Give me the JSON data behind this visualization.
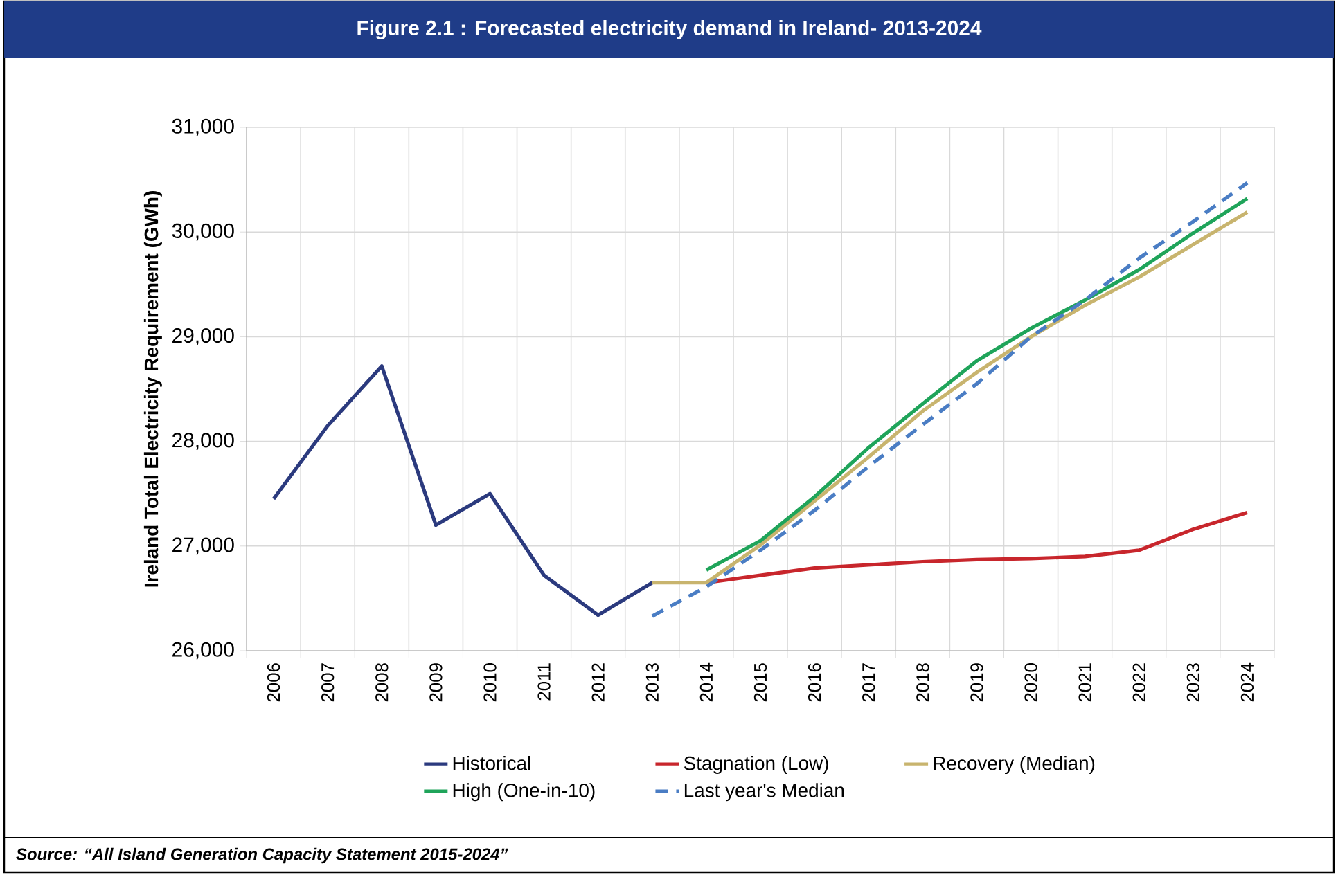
{
  "chart_data": {
    "type": "line",
    "title": "Figure 2.1 : Forecasted electricity demand in Ireland- 2013-2024",
    "ylabel": "Ireland Total Electricity Requirement (GWh)",
    "categories": [
      "2006",
      "2007",
      "2008",
      "2009",
      "2010",
      "2011",
      "2012",
      "2013",
      "2014",
      "2015",
      "2016",
      "2017",
      "2018",
      "2019",
      "2020",
      "2021",
      "2022",
      "2023",
      "2024"
    ],
    "series": [
      {
        "name": "Historical",
        "color": "#2b3a7e",
        "line_style": "solid",
        "values": [
          27450,
          28150,
          28720,
          27200,
          27500,
          26720,
          26340,
          26650,
          null,
          null,
          null,
          null,
          null,
          null,
          null,
          null,
          null,
          null,
          null
        ]
      },
      {
        "name": "Stagnation (Low)",
        "color": "#c8262c",
        "line_style": "solid",
        "values": [
          null,
          null,
          null,
          null,
          null,
          null,
          null,
          null,
          26650,
          26720,
          26790,
          26820,
          26850,
          26870,
          26880,
          26900,
          26960,
          27160,
          27320
        ]
      },
      {
        "name": "Recovery (Median)",
        "color": "#c8b46e",
        "line_style": "solid",
        "values": [
          null,
          null,
          null,
          null,
          null,
          null,
          null,
          26650,
          26650,
          27010,
          27430,
          27850,
          28290,
          28660,
          29000,
          29300,
          29570,
          29880,
          30190
        ]
      },
      {
        "name": "High (One-in-10)",
        "color": "#1fa45a",
        "line_style": "solid",
        "values": [
          null,
          null,
          null,
          null,
          null,
          null,
          null,
          null,
          26770,
          27050,
          27470,
          27940,
          28360,
          28770,
          29080,
          29350,
          29640,
          29990,
          30320
        ]
      },
      {
        "name": "Last year's Median",
        "color": "#4a7dc4",
        "line_style": "dashed",
        "values": [
          null,
          null,
          null,
          null,
          null,
          null,
          null,
          26330,
          26610,
          26960,
          27340,
          27760,
          28160,
          28550,
          29000,
          29350,
          29750,
          30100,
          30470
        ]
      }
    ],
    "ylim": [
      26000,
      31000
    ],
    "yticks": [
      {
        "value": 26000,
        "label": "26,000"
      },
      {
        "value": 27000,
        "label": "27,000"
      },
      {
        "value": 28000,
        "label": "28,000"
      },
      {
        "value": 29000,
        "label": "29,000"
      },
      {
        "value": 30000,
        "label": "30,000"
      },
      {
        "value": 31000,
        "label": "31,000"
      }
    ],
    "grid": true,
    "legend": "bottom",
    "annotations": [
      "Source: “All Island Generation Capacity Statement 2015-2024”"
    ]
  }
}
